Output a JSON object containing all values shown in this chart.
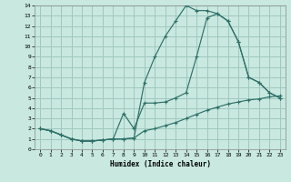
{
  "xlabel": "Humidex (Indice chaleur)",
  "bg_color": "#c8e8e0",
  "grid_color": "#a0c8c0",
  "line_color": "#2e7068",
  "xlim": [
    -0.5,
    23.5
  ],
  "ylim": [
    0,
    14
  ],
  "xticks": [
    0,
    1,
    2,
    3,
    4,
    5,
    6,
    7,
    8,
    9,
    10,
    11,
    12,
    13,
    14,
    15,
    16,
    17,
    18,
    19,
    20,
    21,
    22,
    23
  ],
  "yticks": [
    0,
    1,
    2,
    3,
    4,
    5,
    6,
    7,
    8,
    9,
    10,
    11,
    12,
    13,
    14
  ],
  "line1_x": [
    0,
    1,
    2,
    3,
    4,
    5,
    6,
    7,
    8,
    9,
    10,
    11,
    12,
    13,
    14,
    15,
    16,
    17,
    18,
    19,
    20,
    21,
    22,
    23
  ],
  "line1_y": [
    2,
    1.8,
    1.4,
    1.0,
    0.8,
    0.8,
    0.9,
    1.0,
    1.0,
    1.1,
    6.5,
    9.0,
    11.0,
    12.5,
    14.0,
    13.5,
    13.5,
    13.2,
    12.5,
    10.5,
    7.0,
    6.5,
    5.5,
    5.0
  ],
  "line2_x": [
    0,
    1,
    2,
    3,
    4,
    5,
    6,
    7,
    8,
    9,
    10,
    11,
    12,
    13,
    14,
    15,
    16,
    17,
    18,
    19,
    20,
    21,
    22,
    23
  ],
  "line2_y": [
    2,
    1.8,
    1.4,
    1.0,
    0.8,
    0.8,
    0.9,
    1.0,
    3.5,
    2.0,
    4.5,
    4.5,
    4.6,
    5.0,
    5.5,
    9.0,
    12.8,
    13.2,
    12.5,
    10.5,
    7.0,
    6.5,
    5.5,
    5.0
  ],
  "line3_x": [
    0,
    1,
    2,
    3,
    4,
    5,
    6,
    7,
    8,
    9,
    10,
    11,
    12,
    13,
    14,
    15,
    16,
    17,
    18,
    19,
    20,
    21,
    22,
    23
  ],
  "line3_y": [
    2,
    1.8,
    1.4,
    1.0,
    0.8,
    0.8,
    0.9,
    1.0,
    1.0,
    1.1,
    1.8,
    2.0,
    2.3,
    2.6,
    3.0,
    3.4,
    3.8,
    4.1,
    4.4,
    4.6,
    4.8,
    4.9,
    5.1,
    5.2
  ]
}
